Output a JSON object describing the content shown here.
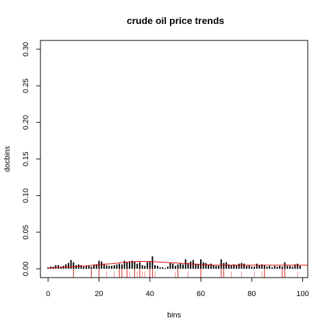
{
  "chart_data": {
    "type": "bar",
    "title": "crude oil price trends",
    "xlabel": "bins",
    "ylabel": "docbins",
    "xlim": [
      -3,
      102
    ],
    "ylim": [
      -0.012,
      0.312
    ],
    "x_ticks": [
      0,
      20,
      40,
      60,
      80,
      100
    ],
    "x_tick_labels": [
      "0",
      "20",
      "40",
      "60",
      "80",
      "100"
    ],
    "y_ticks": [
      0.0,
      0.05,
      0.1,
      0.15,
      0.2,
      0.25,
      0.3
    ],
    "y_tick_labels": [
      "0.00",
      "0.05",
      "0.10",
      "0.15",
      "0.20",
      "0.25",
      "0.30"
    ],
    "grid": false,
    "series": [
      {
        "x": [
          0,
          1,
          2,
          3,
          4,
          5,
          6,
          7,
          8,
          9,
          10,
          11,
          12,
          13,
          14,
          15,
          16,
          17,
          18,
          19,
          20,
          21,
          22,
          23,
          24,
          25,
          26,
          27,
          28,
          29,
          30,
          31,
          32,
          33,
          34,
          35,
          36,
          37,
          38,
          39,
          40,
          41,
          42,
          43,
          44,
          45,
          46,
          47,
          48,
          49,
          50,
          51,
          52,
          53,
          54,
          55,
          56,
          57,
          58,
          59,
          60,
          61,
          62,
          63,
          64,
          65,
          66,
          67,
          68,
          69,
          70,
          71,
          72,
          73,
          74,
          75,
          76,
          77,
          78,
          79,
          80,
          81,
          82,
          83,
          84,
          85,
          86,
          87,
          88,
          89,
          90,
          91,
          92,
          93,
          94,
          95,
          96,
          97,
          98,
          99
        ],
        "values": [
          0.002,
          0.003,
          0.003,
          0.005,
          0.005,
          0.003,
          0.004,
          0.006,
          0.008,
          0.012,
          0.009,
          0.005,
          0.006,
          0.005,
          0.003,
          0.004,
          0.004,
          0.003,
          0.005,
          0.006,
          0.011,
          0.01,
          0.006,
          0.005,
          0.004,
          0.004,
          0.005,
          0.006,
          0.007,
          0.006,
          0.011,
          0.009,
          0.01,
          0.011,
          0.01,
          0.007,
          0.009,
          0.005,
          0.004,
          0.009,
          0.01,
          0.017,
          0.005,
          0.004,
          0.002,
          0.002,
          0.001,
          0.003,
          0.008,
          0.007,
          0.004,
          0.006,
          0.008,
          0.006,
          0.013,
          0.008,
          0.01,
          0.012,
          0.007,
          0.006,
          0.013,
          0.009,
          0.008,
          0.006,
          0.007,
          0.005,
          0.004,
          0.004,
          0.013,
          0.008,
          0.009,
          0.006,
          0.005,
          0.006,
          0.005,
          0.007,
          0.008,
          0.007,
          0.004,
          0.005,
          0.003,
          0.003,
          0.007,
          0.005,
          0.006,
          0.005,
          0.003,
          0.004,
          0.002,
          0.004,
          0.003,
          0.004,
          0.003,
          0.009,
          0.004,
          0.004,
          0.003,
          0.006,
          0.007,
          0.004
        ],
        "color": "#000000"
      },
      {
        "x": [
          0,
          5,
          10,
          15,
          20,
          25,
          30,
          35,
          40,
          45,
          50,
          55,
          60,
          65,
          70,
          75,
          80,
          85,
          90,
          95,
          100,
          102
        ],
        "values": [
          0.001,
          0.002,
          0.003,
          0.004,
          0.006,
          0.007,
          0.009,
          0.01,
          0.01,
          0.009,
          0.008,
          0.007,
          0.006,
          0.005,
          0.005,
          0.005,
          0.005,
          0.005,
          0.005,
          0.005,
          0.005,
          0.005
        ],
        "color": "#dd0000",
        "style": "line"
      }
    ],
    "rug": {
      "color": "#dd0000",
      "x": [
        10,
        17,
        20,
        23,
        26,
        28,
        29,
        31,
        32,
        34,
        35,
        36,
        37,
        38,
        40,
        41,
        42,
        50,
        51,
        55,
        60,
        68,
        69,
        72,
        76,
        81,
        84,
        85,
        92,
        93,
        98
      ],
      "tall": [
        10,
        17,
        20,
        28,
        29,
        31,
        34,
        36,
        40,
        41,
        51,
        60,
        68,
        69,
        85,
        92,
        93
      ]
    }
  }
}
